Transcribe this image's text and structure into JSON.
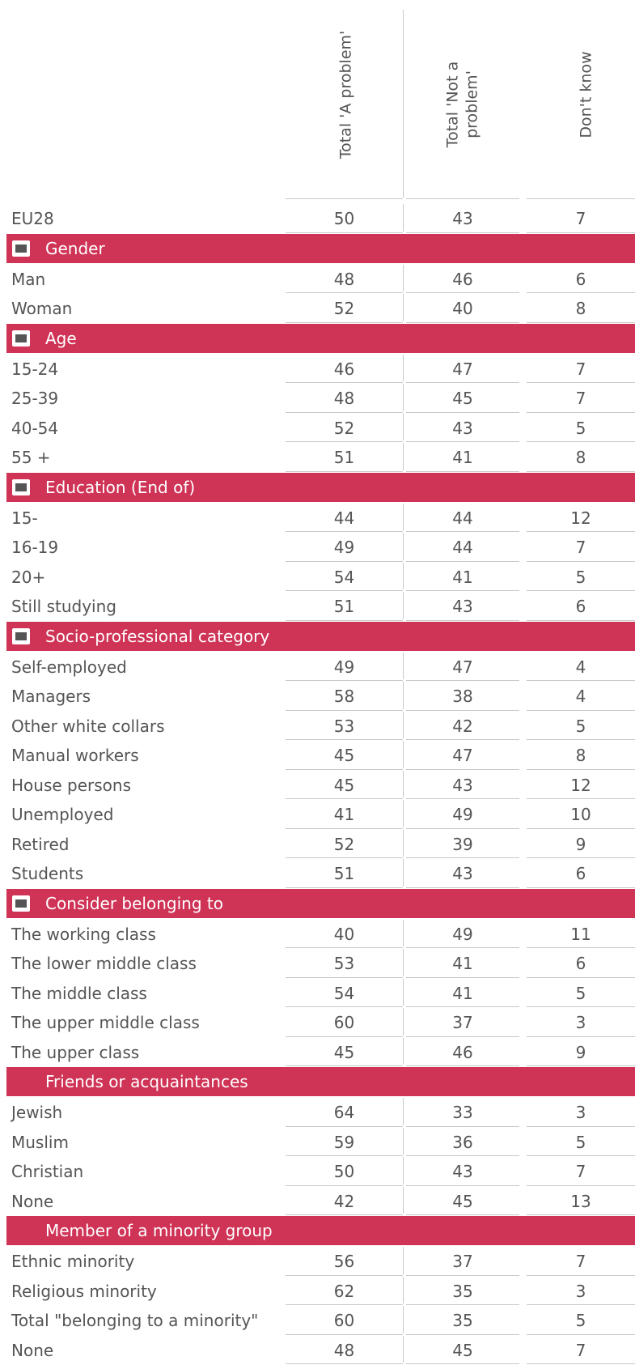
{
  "columns": [
    "Total 'A problem'",
    "Total 'Not a problem'",
    "Don't know"
  ],
  "eu28": {
    "label": "EU28",
    "values": [
      50,
      43,
      7
    ]
  },
  "sections": [
    {
      "title": "Gender",
      "rows": [
        {
          "label": "Man",
          "values": [
            48,
            46,
            6
          ]
        },
        {
          "label": "Woman",
          "values": [
            52,
            40,
            8
          ]
        }
      ]
    },
    {
      "title": "Age",
      "rows": [
        {
          "label": "15-24",
          "values": [
            46,
            47,
            7
          ]
        },
        {
          "label": "25-39",
          "values": [
            48,
            45,
            7
          ]
        },
        {
          "label": "40-54",
          "values": [
            52,
            43,
            5
          ]
        },
        {
          "label": "55 +",
          "values": [
            51,
            41,
            8
          ]
        }
      ]
    },
    {
      "title": "Education (End of)",
      "rows": [
        {
          "label": "15-",
          "values": [
            44,
            44,
            12
          ]
        },
        {
          "label": "16-19",
          "values": [
            49,
            44,
            7
          ]
        },
        {
          "label": "20+",
          "values": [
            54,
            41,
            5
          ]
        },
        {
          "label": "Still studying",
          "values": [
            51,
            43,
            6
          ]
        }
      ]
    },
    {
      "title": "Socio-professional category",
      "rows": [
        {
          "label": "Self-employed",
          "values": [
            49,
            47,
            4
          ]
        },
        {
          "label": "Managers",
          "values": [
            58,
            38,
            4
          ]
        },
        {
          "label": "Other white collars",
          "values": [
            53,
            42,
            5
          ]
        },
        {
          "label": "Manual workers",
          "values": [
            45,
            47,
            8
          ]
        },
        {
          "label": "House persons",
          "values": [
            45,
            43,
            12
          ]
        },
        {
          "label": "Unemployed",
          "values": [
            41,
            49,
            10
          ]
        },
        {
          "label": "Retired",
          "values": [
            52,
            39,
            9
          ]
        },
        {
          "label": "Students",
          "values": [
            51,
            43,
            6
          ]
        }
      ]
    },
    {
      "title": "Consider belonging to",
      "rows": [
        {
          "label": "The working class",
          "values": [
            40,
            49,
            11
          ]
        },
        {
          "label": "The lower middle class",
          "values": [
            53,
            41,
            6
          ]
        },
        {
          "label": "The middle class",
          "values": [
            54,
            41,
            5
          ]
        },
        {
          "label": "The upper middle class",
          "values": [
            60,
            37,
            3
          ]
        },
        {
          "label": "The upper class",
          "values": [
            45,
            46,
            9
          ]
        }
      ]
    },
    {
      "title": "Friends or acquaintances",
      "rows": [
        {
          "label": "Jewish",
          "values": [
            64,
            33,
            3
          ]
        },
        {
          "label": "Muslim",
          "values": [
            59,
            36,
            5
          ]
        },
        {
          "label": "Christian",
          "values": [
            50,
            43,
            7
          ]
        },
        {
          "label": "None",
          "values": [
            42,
            45,
            13
          ]
        }
      ]
    },
    {
      "title": "Member of  a minority group",
      "rows": [
        {
          "label": "Ethnic minority",
          "values": [
            56,
            37,
            7
          ]
        },
        {
          "label": "Religious minority",
          "values": [
            62,
            35,
            3
          ]
        },
        {
          "label": "Total \"belonging to a minority\"",
          "values": [
            60,
            35,
            5
          ]
        },
        {
          "label": "None",
          "values": [
            48,
            45,
            7
          ]
        }
      ]
    }
  ]
}
